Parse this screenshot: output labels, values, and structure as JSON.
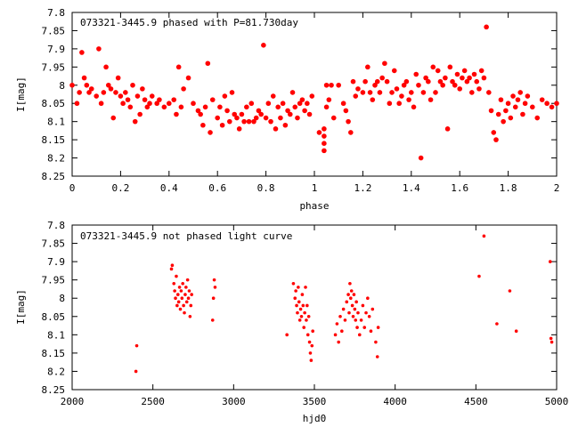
{
  "chart_data": [
    {
      "type": "scatter",
      "title": "073321-3445.9 phased with P=81.730day",
      "xlabel": "phase",
      "ylabel": "I[mag]",
      "xlim": [
        0,
        2
      ],
      "ylim": [
        8.25,
        7.8
      ],
      "y_inverted": true,
      "xticks": [
        0,
        0.2,
        0.4,
        0.6,
        0.8,
        1,
        1.2,
        1.4,
        1.6,
        1.8,
        2
      ],
      "xtick_labels": [
        "0",
        "0.2",
        "0.4",
        "0.6",
        "0.8",
        "1",
        "1.2",
        "1.4",
        "1.6",
        "1.8",
        "2"
      ],
      "yticks": [
        7.8,
        7.85,
        7.9,
        7.95,
        8,
        8.05,
        8.1,
        8.15,
        8.2,
        8.25
      ],
      "ytick_labels": [
        "7.8",
        "7.85",
        "7.9",
        "7.95",
        "8",
        "8.05",
        "8.1",
        "8.15",
        "8.2",
        "8.25"
      ],
      "grid": false,
      "marker_color": "#ff0000",
      "points": [
        [
          0.0,
          8.0
        ],
        [
          0.02,
          8.05
        ],
        [
          0.03,
          8.02
        ],
        [
          0.04,
          7.91
        ],
        [
          0.05,
          7.98
        ],
        [
          0.06,
          8.0
        ],
        [
          0.07,
          8.02
        ],
        [
          0.08,
          8.01
        ],
        [
          0.1,
          8.03
        ],
        [
          0.11,
          7.9
        ],
        [
          0.12,
          8.05
        ],
        [
          0.13,
          8.02
        ],
        [
          0.14,
          7.95
        ],
        [
          0.15,
          8.0
        ],
        [
          0.16,
          8.01
        ],
        [
          0.17,
          8.09
        ],
        [
          0.18,
          8.02
        ],
        [
          0.19,
          7.98
        ],
        [
          0.2,
          8.03
        ],
        [
          0.21,
          8.05
        ],
        [
          0.22,
          8.02
        ],
        [
          0.23,
          8.04
        ],
        [
          0.24,
          8.06
        ],
        [
          0.25,
          8.0
        ],
        [
          0.26,
          8.1
        ],
        [
          0.27,
          8.03
        ],
        [
          0.28,
          8.08
        ],
        [
          0.29,
          8.01
        ],
        [
          0.3,
          8.04
        ],
        [
          0.31,
          8.06
        ],
        [
          0.32,
          8.05
        ],
        [
          0.33,
          8.03
        ],
        [
          0.35,
          8.05
        ],
        [
          0.36,
          8.04
        ],
        [
          0.38,
          8.06
        ],
        [
          0.4,
          8.05
        ],
        [
          0.42,
          8.04
        ],
        [
          0.43,
          8.08
        ],
        [
          0.44,
          7.95
        ],
        [
          0.45,
          8.06
        ],
        [
          0.46,
          8.01
        ],
        [
          0.48,
          7.98
        ],
        [
          0.5,
          8.05
        ],
        [
          0.52,
          8.07
        ],
        [
          0.53,
          8.08
        ],
        [
          0.54,
          8.11
        ],
        [
          0.55,
          8.06
        ],
        [
          0.56,
          7.94
        ],
        [
          0.57,
          8.13
        ],
        [
          0.58,
          8.04
        ],
        [
          0.6,
          8.09
        ],
        [
          0.61,
          8.06
        ],
        [
          0.62,
          8.11
        ],
        [
          0.63,
          8.03
        ],
        [
          0.64,
          8.07
        ],
        [
          0.65,
          8.1
        ],
        [
          0.66,
          8.02
        ],
        [
          0.67,
          8.08
        ],
        [
          0.68,
          8.09
        ],
        [
          0.69,
          8.12
        ],
        [
          0.7,
          8.08
        ],
        [
          0.71,
          8.1
        ],
        [
          0.72,
          8.06
        ],
        [
          0.73,
          8.1
        ],
        [
          0.74,
          8.05
        ],
        [
          0.75,
          8.1
        ],
        [
          0.76,
          8.09
        ],
        [
          0.77,
          8.07
        ],
        [
          0.78,
          8.08
        ],
        [
          0.79,
          7.89
        ],
        [
          0.8,
          8.09
        ],
        [
          0.81,
          8.05
        ],
        [
          0.82,
          8.1
        ],
        [
          0.83,
          8.03
        ],
        [
          0.84,
          8.12
        ],
        [
          0.85,
          8.06
        ],
        [
          0.86,
          8.09
        ],
        [
          0.87,
          8.05
        ],
        [
          0.88,
          8.11
        ],
        [
          0.89,
          8.07
        ],
        [
          0.9,
          8.08
        ],
        [
          0.91,
          8.02
        ],
        [
          0.92,
          8.06
        ],
        [
          0.93,
          8.09
        ],
        [
          0.94,
          8.05
        ],
        [
          0.95,
          8.04
        ],
        [
          0.96,
          8.07
        ],
        [
          0.97,
          8.05
        ],
        [
          0.98,
          8.08
        ],
        [
          0.99,
          8.03
        ],
        [
          1.02,
          8.13
        ],
        [
          1.04,
          8.12
        ],
        [
          1.04,
          8.14
        ],
        [
          1.04,
          8.16
        ],
        [
          1.04,
          8.18
        ],
        [
          1.05,
          8.0
        ],
        [
          1.05,
          8.06
        ],
        [
          1.06,
          8.04
        ],
        [
          1.07,
          8.0
        ],
        [
          1.08,
          8.09
        ],
        [
          1.1,
          8.0
        ],
        [
          1.12,
          8.05
        ],
        [
          1.13,
          8.07
        ],
        [
          1.14,
          8.1
        ],
        [
          1.15,
          8.13
        ],
        [
          1.16,
          7.99
        ],
        [
          1.17,
          8.03
        ],
        [
          1.18,
          8.01
        ],
        [
          1.2,
          8.02
        ],
        [
          1.21,
          7.99
        ],
        [
          1.22,
          7.95
        ],
        [
          1.23,
          8.02
        ],
        [
          1.24,
          8.04
        ],
        [
          1.25,
          8.0
        ],
        [
          1.26,
          7.99
        ],
        [
          1.27,
          8.02
        ],
        [
          1.28,
          7.98
        ],
        [
          1.29,
          7.94
        ],
        [
          1.3,
          7.99
        ],
        [
          1.31,
          8.05
        ],
        [
          1.32,
          8.02
        ],
        [
          1.33,
          7.96
        ],
        [
          1.34,
          8.01
        ],
        [
          1.35,
          8.05
        ],
        [
          1.36,
          8.03
        ],
        [
          1.37,
          8.0
        ],
        [
          1.38,
          7.99
        ],
        [
          1.39,
          8.04
        ],
        [
          1.4,
          8.02
        ],
        [
          1.41,
          8.06
        ],
        [
          1.42,
          7.97
        ],
        [
          1.43,
          8.0
        ],
        [
          1.44,
          8.2
        ],
        [
          1.45,
          8.02
        ],
        [
          1.46,
          7.98
        ],
        [
          1.47,
          7.99
        ],
        [
          1.48,
          8.04
        ],
        [
          1.49,
          7.95
        ],
        [
          1.5,
          8.02
        ],
        [
          1.51,
          7.96
        ],
        [
          1.52,
          7.99
        ],
        [
          1.53,
          8.0
        ],
        [
          1.54,
          7.98
        ],
        [
          1.55,
          8.12
        ],
        [
          1.56,
          7.95
        ],
        [
          1.57,
          7.99
        ],
        [
          1.58,
          8.0
        ],
        [
          1.59,
          7.97
        ],
        [
          1.6,
          8.01
        ],
        [
          1.61,
          7.98
        ],
        [
          1.62,
          7.96
        ],
        [
          1.63,
          7.99
        ],
        [
          1.64,
          7.98
        ],
        [
          1.65,
          8.02
        ],
        [
          1.66,
          7.97
        ],
        [
          1.67,
          7.99
        ],
        [
          1.68,
          8.01
        ],
        [
          1.69,
          7.96
        ],
        [
          1.7,
          7.98
        ],
        [
          1.71,
          7.84
        ],
        [
          1.72,
          8.02
        ],
        [
          1.73,
          8.07
        ],
        [
          1.74,
          8.13
        ],
        [
          1.75,
          8.15
        ],
        [
          1.76,
          8.08
        ],
        [
          1.77,
          8.04
        ],
        [
          1.78,
          8.1
        ],
        [
          1.79,
          8.07
        ],
        [
          1.8,
          8.05
        ],
        [
          1.81,
          8.09
        ],
        [
          1.82,
          8.03
        ],
        [
          1.83,
          8.06
        ],
        [
          1.84,
          8.04
        ],
        [
          1.85,
          8.02
        ],
        [
          1.86,
          8.08
        ],
        [
          1.87,
          8.05
        ],
        [
          1.88,
          8.03
        ],
        [
          1.9,
          8.06
        ],
        [
          1.92,
          8.09
        ],
        [
          1.94,
          8.04
        ],
        [
          1.96,
          8.05
        ],
        [
          1.98,
          8.06
        ],
        [
          2.0,
          8.05
        ]
      ]
    },
    {
      "type": "scatter",
      "title": "073321-3445.9 not phased light curve",
      "xlabel": "hjd0",
      "ylabel": "I[mag]",
      "xlim": [
        2000,
        5000
      ],
      "ylim": [
        8.25,
        7.8
      ],
      "y_inverted": true,
      "xticks": [
        2000,
        2500,
        3000,
        3500,
        4000,
        4500,
        5000
      ],
      "xtick_labels": [
        "2000",
        "2500",
        "3000",
        "3500",
        "4000",
        "4500",
        "5000"
      ],
      "yticks": [
        7.8,
        7.85,
        7.9,
        7.95,
        8,
        8.05,
        8.1,
        8.15,
        8.2,
        8.25
      ],
      "ytick_labels": [
        "7.8",
        "7.85",
        "7.9",
        "7.95",
        "8",
        "8.05",
        "8.1",
        "8.15",
        "8.2",
        "8.25"
      ],
      "grid": false,
      "marker_color": "#ff0000",
      "points": [
        [
          2395,
          8.2
        ],
        [
          2400,
          8.13
        ],
        [
          2615,
          7.92
        ],
        [
          2620,
          7.91
        ],
        [
          2630,
          7.96
        ],
        [
          2635,
          7.98
        ],
        [
          2640,
          8.0
        ],
        [
          2645,
          7.94
        ],
        [
          2650,
          8.02
        ],
        [
          2655,
          7.99
        ],
        [
          2660,
          8.01
        ],
        [
          2665,
          7.97
        ],
        [
          2670,
          8.03
        ],
        [
          2675,
          7.98
        ],
        [
          2680,
          8.0
        ],
        [
          2685,
          7.96
        ],
        [
          2690,
          8.02
        ],
        [
          2695,
          8.04
        ],
        [
          2700,
          7.99
        ],
        [
          2705,
          7.97
        ],
        [
          2710,
          8.01
        ],
        [
          2715,
          7.95
        ],
        [
          2720,
          8.0
        ],
        [
          2725,
          7.98
        ],
        [
          2730,
          8.05
        ],
        [
          2735,
          8.02
        ],
        [
          2740,
          7.99
        ],
        [
          2870,
          8.06
        ],
        [
          2875,
          8.0
        ],
        [
          2880,
          7.95
        ],
        [
          2885,
          7.97
        ],
        [
          3330,
          8.1
        ],
        [
          3370,
          7.96
        ],
        [
          3380,
          8.0
        ],
        [
          3385,
          7.98
        ],
        [
          3390,
          8.02
        ],
        [
          3395,
          8.04
        ],
        [
          3400,
          7.97
        ],
        [
          3405,
          8.01
        ],
        [
          3410,
          8.06
        ],
        [
          3415,
          8.03
        ],
        [
          3420,
          8.05
        ],
        [
          3425,
          7.99
        ],
        [
          3430,
          8.02
        ],
        [
          3435,
          8.08
        ],
        [
          3440,
          8.04
        ],
        [
          3445,
          7.97
        ],
        [
          3450,
          8.06
        ],
        [
          3455,
          8.02
        ],
        [
          3460,
          8.1
        ],
        [
          3465,
          8.05
        ],
        [
          3470,
          8.12
        ],
        [
          3475,
          8.15
        ],
        [
          3480,
          8.17
        ],
        [
          3485,
          8.13
        ],
        [
          3490,
          8.09
        ],
        [
          3630,
          8.1
        ],
        [
          3640,
          8.07
        ],
        [
          3650,
          8.12
        ],
        [
          3660,
          8.05
        ],
        [
          3670,
          8.09
        ],
        [
          3680,
          8.03
        ],
        [
          3690,
          8.06
        ],
        [
          3700,
          8.01
        ],
        [
          3710,
          7.99
        ],
        [
          3715,
          8.04
        ],
        [
          3720,
          7.96
        ],
        [
          3725,
          8.0
        ],
        [
          3730,
          7.98
        ],
        [
          3735,
          8.02
        ],
        [
          3740,
          8.05
        ],
        [
          3745,
          7.99
        ],
        [
          3750,
          8.03
        ],
        [
          3755,
          8.06
        ],
        [
          3760,
          8.01
        ],
        [
          3765,
          8.08
        ],
        [
          3770,
          8.04
        ],
        [
          3780,
          8.1
        ],
        [
          3790,
          8.06
        ],
        [
          3800,
          8.02
        ],
        [
          3810,
          8.08
        ],
        [
          3820,
          8.04
        ],
        [
          3830,
          8.0
        ],
        [
          3840,
          8.05
        ],
        [
          3850,
          8.09
        ],
        [
          3860,
          8.03
        ],
        [
          3880,
          8.12
        ],
        [
          3890,
          8.16
        ],
        [
          3895,
          8.08
        ],
        [
          4520,
          7.94
        ],
        [
          4550,
          7.83
        ],
        [
          4630,
          8.07
        ],
        [
          4710,
          7.98
        ],
        [
          4750,
          8.09
        ],
        [
          4960,
          7.9
        ],
        [
          4965,
          8.11
        ],
        [
          4970,
          8.12
        ]
      ]
    }
  ]
}
